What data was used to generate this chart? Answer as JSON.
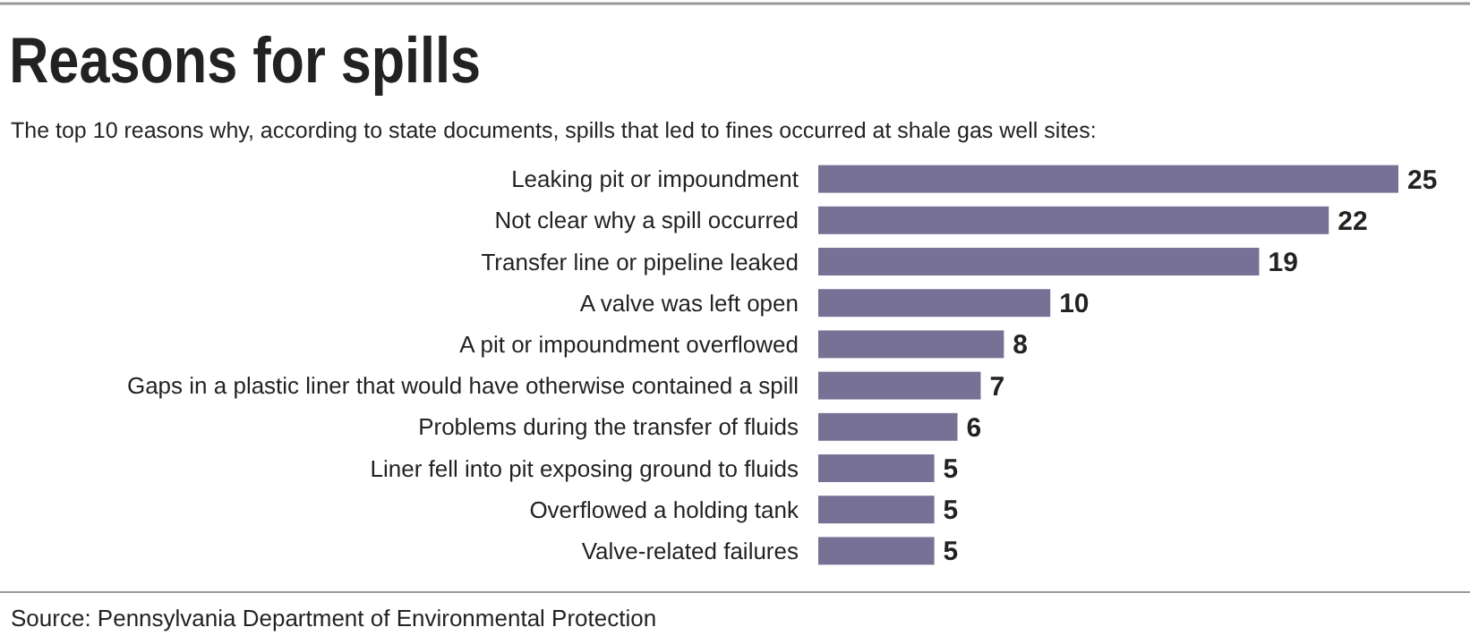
{
  "chart_data": {
    "type": "bar",
    "orientation": "horizontal",
    "title": "Reasons for spills",
    "subtitle": "The top 10 reasons why, according to state documents, spills that led to fines occurred at shale gas well sites:",
    "categories": [
      "Leaking pit or impoundment",
      "Not clear why a spill occurred",
      "Transfer line or pipeline leaked",
      "A valve was left open",
      "A pit or impoundment overflowed",
      "Gaps in a plastic liner that would have otherwise contained a spill",
      "Problems during the transfer of fluids",
      "Liner fell into pit exposing ground to fluids",
      "Overflowed a holding tank",
      "Valve-related failures"
    ],
    "values": [
      25,
      22,
      19,
      10,
      8,
      7,
      6,
      5,
      5,
      5
    ],
    "color": "#777196",
    "data_labels": true,
    "annotations": [
      "Source: Pennsylvania Department of Environmental Protection"
    ]
  }
}
